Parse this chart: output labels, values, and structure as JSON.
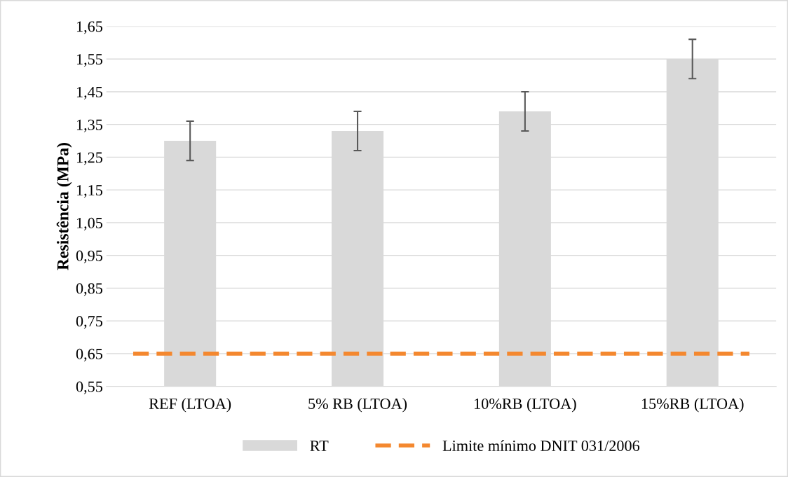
{
  "chart_data": {
    "type": "bar",
    "ylabel": "Resistência (MPa)",
    "categories": [
      "REF (LTOA)",
      "5% RB (LTOA)",
      "10%RB (LTOA)",
      "15%RB (LTOA)"
    ],
    "series": [
      {
        "name": "RT",
        "color": "#d9d9d9",
        "values": [
          1.3,
          1.33,
          1.39,
          1.55
        ],
        "errors": [
          0.06,
          0.06,
          0.06,
          0.06
        ]
      }
    ],
    "ylim": [
      0.55,
      1.65
    ],
    "yticks": [
      {
        "value": 0.55,
        "label": "0,55"
      },
      {
        "value": 0.65,
        "label": "0,65"
      },
      {
        "value": 0.75,
        "label": "0,75"
      },
      {
        "value": 0.85,
        "label": "0,85"
      },
      {
        "value": 0.95,
        "label": "0,95"
      },
      {
        "value": 1.05,
        "label": "1,05"
      },
      {
        "value": 1.15,
        "label": "1,15"
      },
      {
        "value": 1.25,
        "label": "1,25"
      },
      {
        "value": 1.35,
        "label": "1,35"
      },
      {
        "value": 1.45,
        "label": "1,45"
      },
      {
        "value": 1.55,
        "label": "1,55"
      },
      {
        "value": 1.65,
        "label": "1,65"
      }
    ],
    "ref_lines": [
      {
        "axis": "y",
        "value": 0.65,
        "label": "Limite mínimo DNIT 031/2006",
        "color": "#f4882f",
        "line_style": "dashed"
      }
    ],
    "grid": "y",
    "legend": "bottom"
  }
}
